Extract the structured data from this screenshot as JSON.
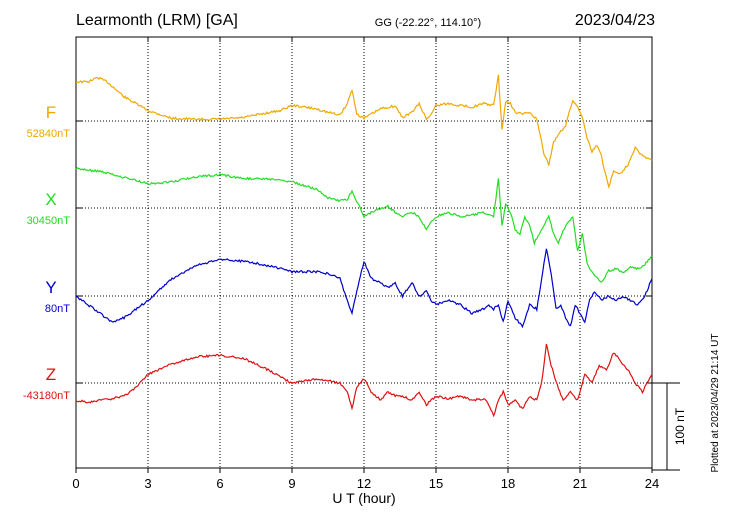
{
  "header": {
    "station": "Learmonth (LRM)  [GA]",
    "coords": "GG (-22.22°, 114.10°)",
    "date": "2023/04/23"
  },
  "side_note": "Plotted at 2023/04/29 21:14 UT",
  "colors": {
    "F": "#f0a800",
    "X": "#22dd22",
    "Y": "#0000cc",
    "Z": "#dd1111",
    "axis": "#000000",
    "grid": "#000000"
  },
  "chart_data": {
    "type": "line",
    "xlabel": "U T (hour)",
    "xlim": [
      0,
      24
    ],
    "xticks": [
      0,
      3,
      6,
      9,
      12,
      15,
      18,
      21,
      24
    ],
    "scale_bar": {
      "label": "100 nT",
      "value_nT": 100
    },
    "series": [
      {
        "name": "F",
        "baseline_label": "52840nT",
        "color_key": "F",
        "x": [
          0,
          0.5,
          0.9,
          1.3,
          2,
          3,
          4,
          5,
          6,
          7,
          7.7,
          8.5,
          9,
          9.5,
          10,
          10.5,
          11,
          11.3,
          11.5,
          11.7,
          12,
          12.3,
          12.7,
          13,
          13.3,
          13.6,
          14,
          14.3,
          14.6,
          14.8,
          15,
          15.5,
          16,
          16.5,
          17,
          17.4,
          17.6,
          17.75,
          17.9,
          18.1,
          18.3,
          18.6,
          18.9,
          19.2,
          19.5,
          19.7,
          19.9,
          20.1,
          20.4,
          20.7,
          20.9,
          21.1,
          21.3,
          21.5,
          21.7,
          21.9,
          22,
          22.2,
          22.4,
          22.7,
          23,
          23.3,
          23.6,
          24
        ],
        "y": [
          45,
          45,
          50,
          45,
          28,
          12,
          3,
          2,
          2,
          4,
          8,
          12,
          18,
          16,
          14,
          10,
          7,
          20,
          36,
          8,
          3,
          8,
          14,
          16,
          17,
          4,
          10,
          20,
          2,
          8,
          18,
          20,
          18,
          16,
          20,
          18,
          52,
          -10,
          22,
          20,
          10,
          8,
          10,
          2,
          -38,
          -50,
          -25,
          -15,
          -5,
          24,
          16,
          5,
          -20,
          -35,
          -28,
          -40,
          -55,
          -75,
          -58,
          -60,
          -50,
          -30,
          -40,
          -45
        ]
      },
      {
        "name": "X",
        "baseline_label": "30450nT",
        "color_key": "X",
        "x": [
          0,
          1,
          2,
          3,
          4,
          5,
          6,
          7,
          8,
          9,
          10,
          10.5,
          11,
          11.3,
          11.5,
          11.7,
          12,
          12.3,
          12.7,
          13,
          13.3,
          13.6,
          14,
          14.3,
          14.6,
          14.8,
          15,
          15.5,
          16,
          16.5,
          17,
          17.4,
          17.6,
          17.75,
          17.9,
          18.1,
          18.3,
          18.5,
          18.7,
          18.9,
          19.1,
          19.4,
          19.7,
          19.9,
          20.1,
          20.4,
          20.7,
          20.9,
          21.1,
          21.3,
          21.6,
          21.9,
          22.2,
          22.5,
          22.8,
          23.1,
          23.4,
          23.7,
          24
        ],
        "y": [
          45,
          42,
          35,
          28,
          30,
          36,
          38,
          34,
          33,
          30,
          22,
          12,
          8,
          10,
          20,
          8,
          -10,
          -5,
          0,
          2,
          -5,
          -10,
          -5,
          -10,
          -25,
          -15,
          -10,
          -5,
          -10,
          -8,
          -5,
          -10,
          35,
          -20,
          5,
          -5,
          -25,
          -30,
          -10,
          -20,
          -40,
          -25,
          -10,
          -30,
          -40,
          -20,
          -10,
          -50,
          -30,
          -65,
          -78,
          -85,
          -72,
          -70,
          -75,
          -68,
          -70,
          -65,
          -55
        ]
      },
      {
        "name": "Y",
        "baseline_label": "80nT",
        "color_key": "Y",
        "x": [
          0,
          0.5,
          1,
          1.5,
          2,
          3,
          4,
          5,
          6,
          7,
          8,
          9,
          10,
          10.5,
          11,
          11.3,
          11.5,
          11.7,
          12,
          12.3,
          12.7,
          13,
          13.3,
          13.6,
          14,
          14.3,
          14.6,
          14.8,
          15,
          15.5,
          16,
          16.5,
          17,
          17.2,
          17.4,
          17.6,
          17.8,
          18,
          18.3,
          18.6,
          18.9,
          19.2,
          19.4,
          19.6,
          19.8,
          20,
          20.2,
          20.4,
          20.6,
          20.8,
          21,
          21.2,
          21.4,
          21.6,
          21.9,
          22.2,
          22.5,
          22.8,
          23.1,
          23.4,
          23.7,
          24
        ],
        "y": [
          0,
          -10,
          -20,
          -30,
          -25,
          -5,
          20,
          35,
          42,
          40,
          35,
          28,
          28,
          26,
          20,
          -5,
          -20,
          5,
          40,
          20,
          15,
          10,
          15,
          0,
          15,
          0,
          5,
          -5,
          -10,
          -5,
          -10,
          -20,
          -15,
          -10,
          -15,
          -10,
          -30,
          -5,
          -25,
          -35,
          -10,
          -15,
          20,
          55,
          25,
          -15,
          -10,
          -25,
          -35,
          -10,
          -20,
          -30,
          -5,
          5,
          -5,
          0,
          -5,
          0,
          -5,
          -10,
          0,
          20
        ]
      },
      {
        "name": "Z",
        "baseline_label": "-43180nT",
        "color_key": "Z",
        "x": [
          0,
          0.5,
          1,
          1.5,
          2,
          2.5,
          3,
          4,
          5,
          6,
          7,
          8,
          9,
          9.5,
          10,
          10.5,
          11,
          11.3,
          11.5,
          11.7,
          12,
          12.3,
          12.7,
          13,
          13.3,
          13.6,
          14,
          14.3,
          14.6,
          14.8,
          15,
          15.5,
          16,
          16.5,
          17,
          17.2,
          17.4,
          17.6,
          17.8,
          18,
          18.3,
          18.6,
          18.9,
          19.2,
          19.4,
          19.6,
          19.8,
          20,
          20.3,
          20.6,
          20.9,
          21.2,
          21.5,
          21.8,
          22.1,
          22.4,
          22.7,
          23,
          23.3,
          23.6,
          24
        ],
        "y": [
          -20,
          -22,
          -20,
          -18,
          -15,
          -5,
          10,
          22,
          30,
          32,
          28,
          15,
          0,
          2,
          5,
          3,
          0,
          -10,
          -30,
          -5,
          5,
          -10,
          -20,
          -10,
          -15,
          -15,
          -20,
          -10,
          -25,
          -20,
          -15,
          -18,
          -15,
          -20,
          -18,
          -25,
          -38,
          -20,
          -10,
          -25,
          -20,
          -30,
          -15,
          -20,
          0,
          45,
          20,
          2,
          -20,
          -10,
          -20,
          10,
          0,
          20,
          15,
          35,
          25,
          15,
          0,
          -10,
          10
        ]
      }
    ]
  }
}
